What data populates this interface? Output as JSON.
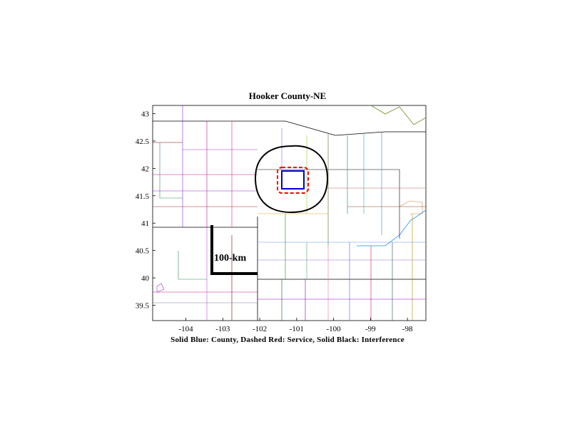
{
  "title": "Hooker County-NE",
  "caption": "Solid Blue: County, Dashed Red: Service, Solid Black: Interference",
  "scale_bar": {
    "label": "100-km"
  },
  "map": {
    "x_ticks": [
      "-104",
      "-103",
      "-102",
      "-101",
      "-100",
      "-99",
      "-98"
    ],
    "y_ticks": [
      "43",
      "42.5",
      "42",
      "41.5",
      "41",
      "40.5",
      "40",
      "39.5"
    ],
    "x_tick_values": [
      -104,
      -103,
      -102,
      -101,
      -100,
      -99,
      -98
    ],
    "y_tick_values": [
      43,
      42.5,
      42,
      41.5,
      41,
      40.5,
      40,
      39.5
    ],
    "lon_range": [
      -104.9,
      -97.5
    ],
    "lat_range": [
      39.22,
      43.15
    ]
  },
  "colors": {
    "county": "#0000cc",
    "service": "#ff0000",
    "interference": "#000000"
  }
}
